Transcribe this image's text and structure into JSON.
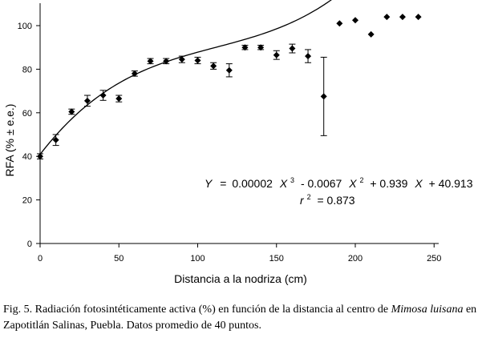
{
  "chart_data": {
    "type": "scatter",
    "xlabel": "Distancia a la nodriza (cm)",
    "ylabel": "RFA (% ± e.e.)",
    "xlim": [
      0,
      250
    ],
    "ylim": [
      0,
      110
    ],
    "xticks": [
      0,
      50,
      100,
      150,
      200,
      250
    ],
    "yticks": [
      0,
      20,
      40,
      60,
      80,
      100
    ],
    "x_tick_labels": [
      "0",
      "50",
      "100",
      "150",
      "200",
      "250"
    ],
    "y_tick_labels": [
      "0",
      "20",
      "40",
      "60",
      "80",
      "100"
    ],
    "grid": false,
    "marker": "diamond",
    "points": [
      {
        "x": 0,
        "y": 40,
        "err": 1.2
      },
      {
        "x": 10,
        "y": 47.5,
        "err": 2.5
      },
      {
        "x": 20,
        "y": 60.5,
        "err": 1.2
      },
      {
        "x": 30,
        "y": 65.5,
        "err": 2.5
      },
      {
        "x": 40,
        "y": 68,
        "err": 2.3
      },
      {
        "x": 50,
        "y": 66.5,
        "err": 1.5
      },
      {
        "x": 60,
        "y": 78,
        "err": 1.2
      },
      {
        "x": 70,
        "y": 83.7,
        "err": 1.2
      },
      {
        "x": 80,
        "y": 83.7,
        "err": 1.2
      },
      {
        "x": 90,
        "y": 84.5,
        "err": 1.5
      },
      {
        "x": 100,
        "y": 84,
        "err": 1.5
      },
      {
        "x": 110,
        "y": 81.5,
        "err": 1.5
      },
      {
        "x": 120,
        "y": 79.5,
        "err": 3.0
      },
      {
        "x": 130,
        "y": 90,
        "err": 1.0
      },
      {
        "x": 140,
        "y": 90,
        "err": 1.0
      },
      {
        "x": 150,
        "y": 86.5,
        "err": 2.0
      },
      {
        "x": 160,
        "y": 89.5,
        "err": 2.0
      },
      {
        "x": 170,
        "y": 86,
        "err": 3.0
      },
      {
        "x": 180,
        "y": 67.5,
        "err": 18.0
      },
      {
        "x": 190,
        "y": 101,
        "err": 0
      },
      {
        "x": 200,
        "y": 102.5,
        "err": 0
      },
      {
        "x": 210,
        "y": 96,
        "err": 0
      },
      {
        "x": 220,
        "y": 104,
        "err": 0
      },
      {
        "x": 230,
        "y": 104,
        "err": 0
      },
      {
        "x": 240,
        "y": 104,
        "err": 0
      }
    ],
    "fit": {
      "type": "cubic",
      "coefficients": {
        "x3": 2e-05,
        "x2": -0.0067,
        "x1": 0.939,
        "x0": 40.913
      },
      "x_range": [
        0,
        240
      ]
    },
    "equation": {
      "y_var": "Y",
      "eq_sign": "=",
      "c3": "0.00002",
      "x_var": "X",
      "exp3": "3",
      "c2": "- 0.0067",
      "exp2": "2",
      "c1": "+ 0.939",
      "c0": "+ 40.913",
      "r_var": "r",
      "r_exp": "2",
      "r_value": "= 0.873"
    }
  },
  "caption": {
    "part1": "Fig. 5. Radiación fotosintéticamente activa (%) en función de la distancia al centro de ",
    "species_genus": "Mimosa",
    "species_epithet": "luisana",
    "part2": " en Zapotitlán Salinas, Puebla. Datos promedio de 40 puntos."
  }
}
